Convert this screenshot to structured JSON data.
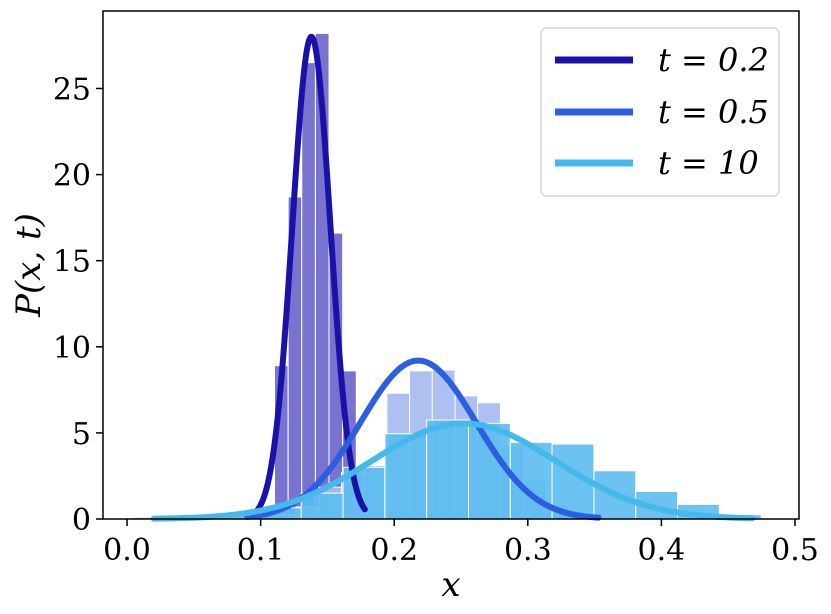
{
  "chart_data": {
    "type": "bar",
    "xlabel": "x",
    "ylabel": "P(x, t)",
    "xlim": [
      -0.018,
      0.503
    ],
    "ylim": [
      0,
      29.5
    ],
    "xticks": [
      "0.0",
      "0.1",
      "0.2",
      "0.3",
      "0.4",
      "0.5"
    ],
    "yticks": [
      "0",
      "5",
      "10",
      "15",
      "20",
      "25"
    ],
    "legend_position": "top-right",
    "grid": false,
    "series": [
      {
        "name": "t = 0.2",
        "legend_label": "t = 0.2",
        "line_color": "#1a12a8",
        "bar_color": "#5954c4",
        "bar_opacity": 0.82,
        "curve": {
          "mean": 0.138,
          "sd": 0.0143,
          "peak": 28.0,
          "xmin": 0.097,
          "xmax": 0.178
        },
        "hist": {
          "edges": [
            0.1002,
            0.1104,
            0.1206,
            0.1308,
            0.141,
            0.1512,
            0.1614,
            0.1716
          ],
          "heights": [
            0.45,
            8.9,
            18.7,
            26.5,
            28.2,
            16.6,
            8.6
          ]
        }
      },
      {
        "name": "t = 0.5",
        "legend_label": "t = 0.5",
        "line_color": "#2b5fe0",
        "bar_color": "#a9bdf0",
        "bar_opacity": 0.95,
        "curve": {
          "mean": 0.218,
          "sd": 0.0435,
          "peak": 9.2,
          "xmin": 0.09,
          "xmax": 0.353
        },
        "hist": {
          "edges": [
            0.1095,
            0.1265,
            0.1435,
            0.1605,
            0.1775,
            0.1945,
            0.2115,
            0.2285,
            0.2455,
            0.2625,
            0.2795,
            0.2965,
            0.3135,
            0.3305,
            0.3475
          ],
          "heights": [
            0.25,
            0.7,
            1.85,
            2.7,
            3.1,
            7.3,
            8.6,
            8.65,
            7.15,
            6.75,
            4.3,
            2.25,
            0.8,
            0.3
          ]
        }
      },
      {
        "name": "t = 10",
        "legend_label": "t = 10",
        "line_color": "#45b8ec",
        "bar_color": "#5cbdf0",
        "bar_opacity": 0.9,
        "curve": {
          "mean": 0.252,
          "sd": 0.069,
          "peak": 5.55,
          "xmin": 0.02,
          "xmax": 0.468
        },
        "hist": {
          "edges": [
            0.0052,
            0.0365,
            0.0678,
            0.0991,
            0.1304,
            0.1617,
            0.193,
            0.2243,
            0.2556,
            0.2869,
            0.3182,
            0.3495,
            0.3808,
            0.4121,
            0.4434,
            0.4747
          ],
          "heights": [
            0.1,
            0.15,
            0.3,
            0.65,
            1.5,
            3.0,
            4.95,
            5.75,
            5.55,
            4.45,
            4.35,
            2.8,
            1.6,
            0.85,
            0.25
          ]
        }
      }
    ]
  }
}
